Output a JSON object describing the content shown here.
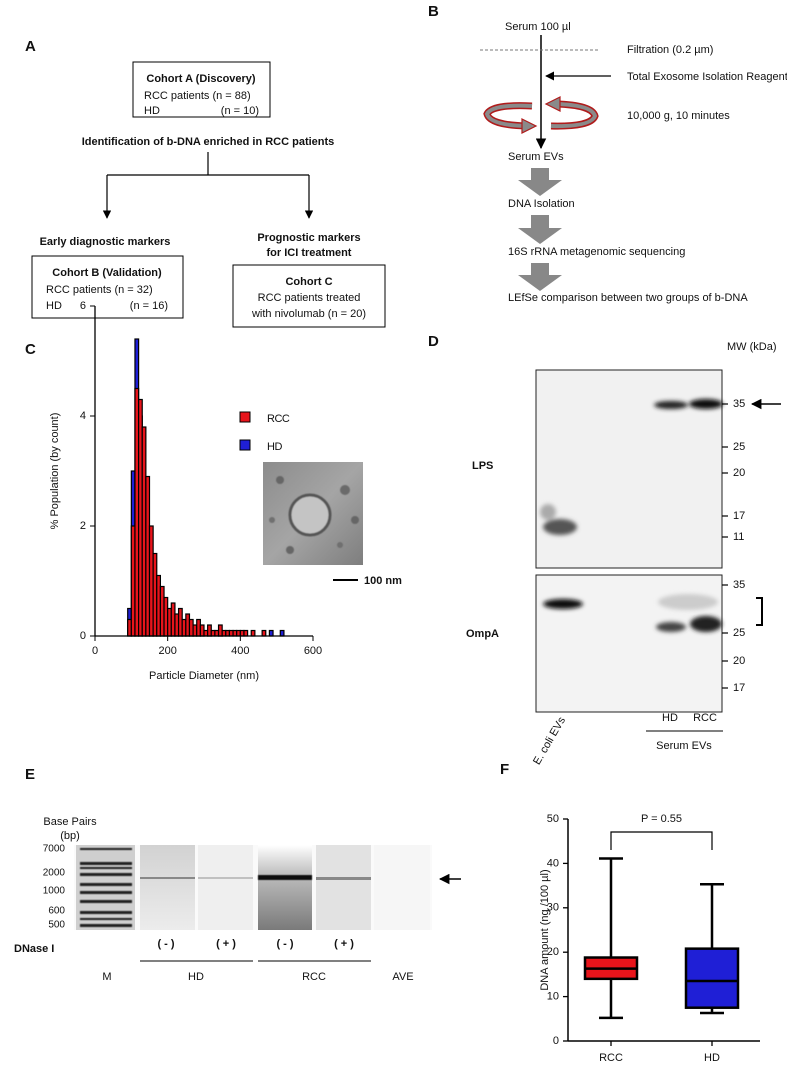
{
  "panel_a": {
    "label": "A",
    "cohort_a": {
      "title": "Cohort A (Discovery)",
      "line1": "RCC patients (n = 88)",
      "line2": [
        "HD",
        "(n = 10)"
      ]
    },
    "step": "Identification of b-DNA enriched in RCC patients",
    "branch_left": "Early diagnostic markers",
    "branch_right": [
      "Prognostic markers",
      "for ICI treatment"
    ],
    "cohort_b": {
      "title": "Cohort B (Validation)",
      "line1": "RCC patients (n = 32)",
      "line2": [
        "HD",
        "(n = 16)"
      ]
    },
    "cohort_c": {
      "title": "Cohort C",
      "line1": "RCC patients treated",
      "line2": "with nivolumab (n = 20)"
    }
  },
  "panel_b": {
    "label": "B",
    "steps": [
      "Serum 100 µl",
      "Serum EVs",
      "DNA Isolation",
      "16S rRNA metagenomic sequencing",
      "LEfSe comparison between two groups of b-DNA"
    ],
    "notes": [
      "Filtration (0.2 µm)",
      "Total Exosome Isolation Reagent",
      "10,000 g, 10 minutes"
    ]
  },
  "panel_c": {
    "label": "C",
    "scale_bar": "100 nm"
  },
  "panel_d": {
    "label": "D",
    "mw_header": "MW (kDa)",
    "blots": [
      {
        "name": "LPS",
        "markers": [
          35,
          25,
          20,
          17,
          11
        ]
      },
      {
        "name": "OmpA",
        "markers": [
          35,
          25,
          20,
          17
        ]
      }
    ],
    "lanes": [
      "E. coli EVs",
      "HD",
      "RCC"
    ],
    "group": "Serum EVs"
  },
  "panel_e": {
    "label": "E",
    "axis_title": [
      "Base Pairs",
      "(bp)"
    ],
    "ladder": [
      7000,
      2000,
      1000,
      600,
      500
    ],
    "treatment": "DNase I",
    "treatment_states": [
      "( - )",
      "( + )",
      "( - )",
      "( + )"
    ],
    "lanes": [
      "M",
      "HD",
      "RCC",
      "AVE"
    ]
  },
  "panel_f": {
    "label": "F"
  },
  "chart_data": [
    {
      "type": "histogram",
      "xlabel": "Particle Diameter (nm)",
      "ylabel": "% Population (by count)",
      "bins": [
        80,
        90,
        100,
        110,
        120,
        130,
        140,
        150,
        160,
        170,
        180,
        190,
        200,
        210,
        220,
        230,
        240,
        250,
        260,
        270,
        280,
        290,
        300,
        310,
        320,
        330,
        340,
        350,
        360,
        370,
        380,
        390,
        400,
        410,
        420,
        430,
        440,
        450,
        460,
        470,
        480,
        490,
        500,
        510,
        520
      ],
      "series": [
        {
          "name": "RCC",
          "color": "#e8141b",
          "values": [
            0,
            0.3,
            2.0,
            4.5,
            4.3,
            3.8,
            2.9,
            2.0,
            1.5,
            1.1,
            0.9,
            0.7,
            0.5,
            0.6,
            0.4,
            0.5,
            0.3,
            0.4,
            0.3,
            0.2,
            0.3,
            0.2,
            0.1,
            0.2,
            0.1,
            0.1,
            0.2,
            0.1,
            0.1,
            0.1,
            0.1,
            0.1,
            0.1,
            0.1,
            0,
            0.1,
            0,
            0,
            0.1,
            0,
            0,
            0,
            0,
            0
          ]
        },
        {
          "name": "HD",
          "color": "#1f1fd6",
          "values": [
            0,
            0.5,
            3.0,
            5.4,
            4.0,
            2.5,
            1.6,
            1.1,
            0.8,
            0.6,
            0.4,
            0.4,
            0.3,
            0.2,
            0.2,
            0.2,
            0.1,
            0.1,
            0.1,
            0.1,
            0.1,
            0.1,
            0,
            0.1,
            0,
            0,
            0.1,
            0,
            0,
            0,
            0,
            0,
            0,
            0,
            0,
            0,
            0,
            0,
            0,
            0,
            0.1,
            0,
            0,
            0.1
          ]
        }
      ],
      "bar_edge_color": "#000000",
      "xlim": [
        0,
        600
      ],
      "xticks": [
        0,
        200,
        400,
        600
      ],
      "ylim": [
        0,
        6
      ],
      "yticks": [
        0,
        2,
        4,
        6
      ]
    },
    {
      "type": "box",
      "ylabel": "DNA amount (ng /100 µl)",
      "categories": [
        "RCC",
        "HD"
      ],
      "boxes": [
        {
          "min": 5.2,
          "q1": 14.0,
          "median": 16.3,
          "q3": 18.8,
          "max": 41.1,
          "color": "#e8141b"
        },
        {
          "min": 6.3,
          "q1": 7.5,
          "median": 13.5,
          "q3": 20.8,
          "max": 35.3,
          "color": "#1f1fd6"
        }
      ],
      "annotation": "P = 0.55",
      "ylim": [
        0,
        50
      ],
      "yticks": [
        0,
        10,
        20,
        30,
        40,
        50
      ]
    }
  ]
}
